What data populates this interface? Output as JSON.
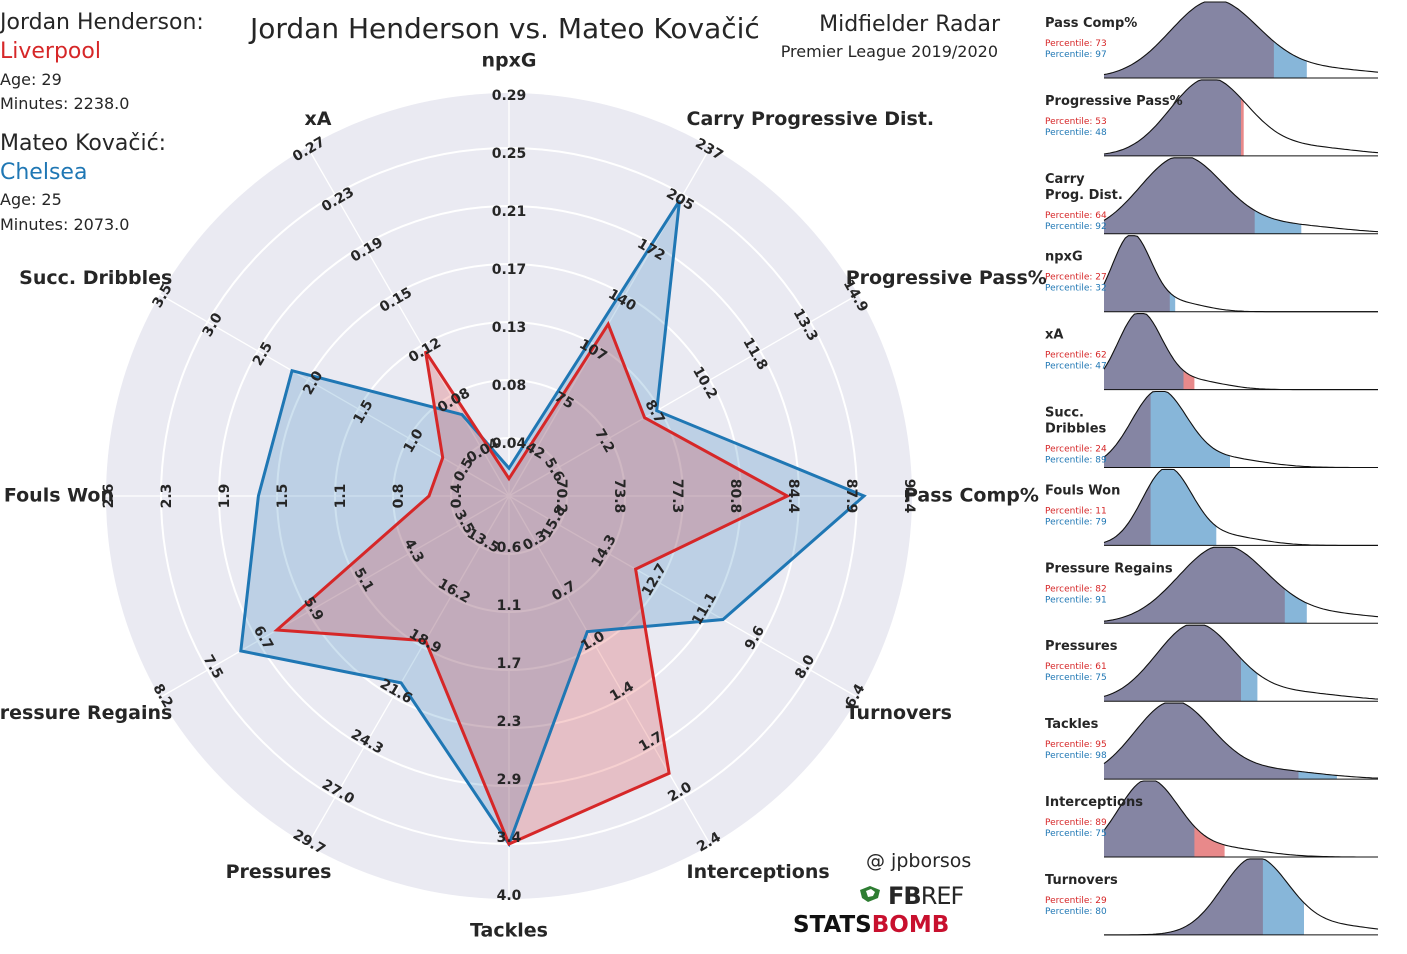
{
  "title": "Jordan Henderson vs. Mateo Kovačić",
  "subtitle": "Midfielder Radar",
  "competition": "Premier League 2019/2020",
  "credit": "@ jpborsos",
  "logos": {
    "fbref_left": "FB",
    "fbref_right": "REF",
    "statsbomb_left": "STATS",
    "statsbomb_right": "BOMB"
  },
  "colors": {
    "player1": "#d62728",
    "player2": "#1f77b4",
    "radar_bg": "#eaeaf2",
    "kde_fill": "#8585a3"
  },
  "players": [
    {
      "name": "Jordan Henderson:",
      "team": "Liverpool",
      "age": "Age: 29",
      "minutes": "Minutes: 2238.0"
    },
    {
      "name": "Mateo Kovačić:",
      "team": "Chelsea",
      "age": "Age: 25",
      "minutes": "Minutes: 2073.0"
    }
  ],
  "chart_data": [
    {
      "type": "radar",
      "title": "",
      "axes": [
        "npxG",
        "Carry Progressive Dist.",
        "Progressive Pass%",
        "Pass Comp%",
        "Turnovers",
        "Interceptions",
        "Tackles",
        "Pressures",
        "Pressure Regains",
        "Fouls Won",
        "Succ. Dribbles",
        "xA"
      ],
      "axis_labels": [
        "npxG",
        "Carry Progressive Dist.",
        "Progressive Pass%",
        "Pass Comp%",
        "Turnovers",
        "Interceptions",
        "Tackles",
        "Pressures",
        "Pressure Regains",
        "Fouls Won",
        "Succ. Dribbles",
        "xA"
      ],
      "ticks": [
        [
          "0.04",
          "0.08",
          "0.13",
          "0.17",
          "0.21",
          "0.25",
          "0.29"
        ],
        [
          "42",
          "75",
          "107",
          "140",
          "172",
          "205",
          "237"
        ],
        [
          "5.6",
          "7.2",
          "8.7",
          "10.2",
          "11.8",
          "13.3",
          "14.9"
        ],
        [
          "70.2",
          "73.8",
          "77.3",
          "80.8",
          "84.4",
          "87.9",
          "91.4"
        ],
        [
          "15.8",
          "14.3",
          "12.7",
          "11.1",
          "9.6",
          "8.0",
          "6.4"
        ],
        [
          "0.3",
          "0.7",
          "1.0",
          "1.4",
          "1.7",
          "2.0",
          "2.4"
        ],
        [
          "0.6",
          "1.1",
          "1.7",
          "2.3",
          "2.9",
          "3.4",
          "4.0"
        ],
        [
          "13.5",
          "16.2",
          "18.9",
          "21.6",
          "24.3",
          "27.0",
          "29.7"
        ],
        [
          "3.5",
          "4.3",
          "5.1",
          "5.9",
          "6.7",
          "7.5",
          "8.2"
        ],
        [
          "0.4",
          "0.8",
          "1.1",
          "1.5",
          "1.9",
          "2.3",
          "2.6"
        ],
        [
          "0.5",
          "1.0",
          "1.5",
          "2.0",
          "2.5",
          "3.0",
          "3.5"
        ],
        [
          "0.04",
          "0.08",
          "0.12",
          "0.15",
          "0.19",
          "0.23",
          "0.27"
        ]
      ],
      "series": [
        {
          "name": "Jordan Henderson",
          "values_fraction": [
            0.05,
            0.57,
            0.45,
            0.8,
            0.42,
            0.92,
            1.0,
            0.48,
            0.77,
            0.23,
            0.22,
            0.48
          ]
        },
        {
          "name": "Mateo Kovačić",
          "values_fraction": [
            0.08,
            0.98,
            0.49,
            1.02,
            0.71,
            0.45,
            1.0,
            0.62,
            0.89,
            0.72,
            0.72,
            0.27
          ]
        }
      ]
    },
    {
      "type": "density",
      "title": "",
      "metrics": [
        {
          "label": "Pass Comp%",
          "p1": "Percentile: 73",
          "p2": "Percentile: 97",
          "p1_value": 73,
          "p2_value": 97,
          "peak": 0.4,
          "spread": 0.16,
          "p1_pos": 0.62,
          "p2_pos": 0.74
        },
        {
          "label": "Progressive Pass%",
          "p1": "Percentile: 53",
          "p2": "Percentile: 48",
          "p1_value": 53,
          "p2_value": 48,
          "peak": 0.38,
          "spread": 0.14,
          "p1_pos": 0.51,
          "p2_pos": 0.5
        },
        {
          "label": "Carry\nProg. Dist.",
          "p1": "Percentile: 64",
          "p2": "Percentile: 92",
          "p1_value": 64,
          "p2_value": 92,
          "peak": 0.28,
          "spread": 0.15,
          "p1_pos": 0.55,
          "p2_pos": 0.72
        },
        {
          "label": "npxG",
          "p1": "Percentile: 27",
          "p2": "Percentile: 32",
          "p1_value": 27,
          "p2_value": 32,
          "peak": 0.1,
          "spread": 0.07,
          "p1_pos": 0.24,
          "p2_pos": 0.26
        },
        {
          "label": "xA",
          "p1": "Percentile: 62",
          "p2": "Percentile: 47",
          "p1_value": 62,
          "p2_value": 47,
          "peak": 0.13,
          "spread": 0.08,
          "p1_pos": 0.33,
          "p2_pos": 0.29
        },
        {
          "label": "Succ.\nDribbles",
          "p1": "Percentile: 24",
          "p2": "Percentile: 89",
          "p1_value": 24,
          "p2_value": 89,
          "peak": 0.2,
          "spread": 0.1,
          "p1_pos": 0.17,
          "p2_pos": 0.46
        },
        {
          "label": "Fouls Won",
          "p1": "Percentile: 11",
          "p2": "Percentile: 79",
          "p1_value": 11,
          "p2_value": 79,
          "peak": 0.23,
          "spread": 0.09,
          "p1_pos": 0.17,
          "p2_pos": 0.41
        },
        {
          "label": "Pressure Regains",
          "p1": "Percentile: 82",
          "p2": "Percentile: 91",
          "p1_value": 82,
          "p2_value": 91,
          "peak": 0.43,
          "spread": 0.16,
          "p1_pos": 0.66,
          "p2_pos": 0.74
        },
        {
          "label": "Pressures",
          "p1": "Percentile: 61",
          "p2": "Percentile: 75",
          "p1_value": 61,
          "p2_value": 75,
          "peak": 0.33,
          "spread": 0.14,
          "p1_pos": 0.5,
          "p2_pos": 0.56
        },
        {
          "label": "Tackles",
          "p1": "Percentile: 95",
          "p2": "Percentile: 98",
          "p1_value": 95,
          "p2_value": 98,
          "peak": 0.25,
          "spread": 0.14,
          "p1_pos": 0.71,
          "p2_pos": 0.85
        },
        {
          "label": "Interceptions",
          "p1": "Percentile: 89",
          "p2": "Percentile: 75",
          "p1_value": 89,
          "p2_value": 75,
          "peak": 0.16,
          "spread": 0.11,
          "p1_pos": 0.44,
          "p2_pos": 0.33
        },
        {
          "label": "Turnovers",
          "p1": "Percentile: 29",
          "p2": "Percentile: 80",
          "p1_value": 29,
          "p2_value": 80,
          "peak": 0.55,
          "spread": 0.12,
          "p1_pos": 0.58,
          "p2_pos": 0.73
        }
      ]
    }
  ]
}
